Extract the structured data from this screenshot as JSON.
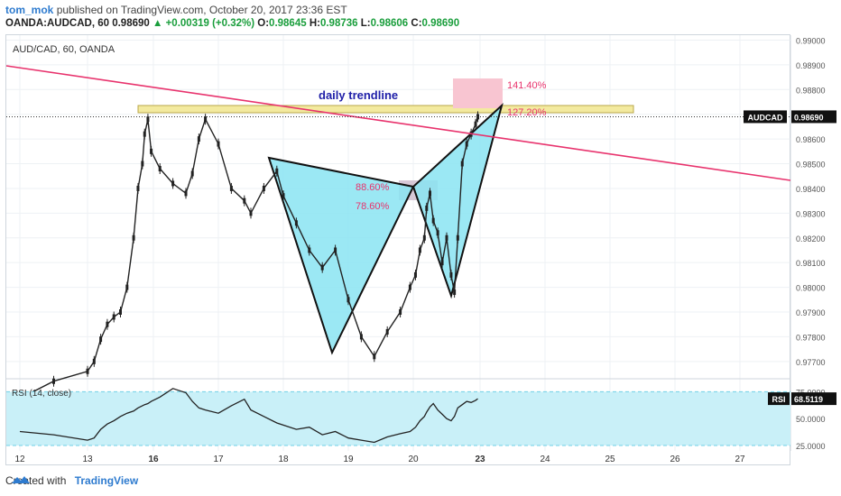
{
  "header": {
    "author": "tom_mok",
    "published": "published on TradingView.com, October 20, 2017 23:36 EST",
    "symbol": "OANDA:AUDCAD, 60",
    "last": "0.98690",
    "change": "+0.00319 (+0.32%)",
    "ohlc_o_label": "O:",
    "ohlc_o": "0.98645",
    "ohlc_h_label": "H:",
    "ohlc_h": "0.98736",
    "ohlc_l_label": "L:",
    "ohlc_l": "0.98606",
    "ohlc_c_label": "C:",
    "ohlc_c": "0.98690"
  },
  "footer": {
    "created_with": "Created with",
    "brand": "TradingView"
  },
  "colors": {
    "trendline": "#e8336d",
    "pattern_fill": "#8ae4f2",
    "pattern_stroke": "#111111",
    "support_zone": "#f3ea9f",
    "fib_box_top": "#f8c5d1",
    "fib_box_mid": "#d7c7d6",
    "rsi_fill": "#c9f0f8",
    "rsi_band": "#6fcfe6",
    "candle": "#222222",
    "annotation_blue": "#1f1fa8",
    "price_tag": "#111111"
  },
  "chart_data": {
    "type": "line",
    "title": "AUD/CAD, 60, OANDA",
    "series": [
      {
        "name": "AUDCAD",
        "x": [
          "12",
          "12.5",
          "13",
          "13.3",
          "13.6",
          "13.9",
          "14.2",
          "14.5",
          "14.8",
          "15.1",
          "15.3",
          "15.5",
          "15.6",
          "15.75",
          "15.9",
          "16.1",
          "16.3",
          "16.5",
          "16.6",
          "16.7",
          "16.8",
          "17",
          "17.2",
          "17.4",
          "17.5",
          "17.7",
          "17.9",
          "18",
          "18.2",
          "18.4",
          "18.6",
          "18.8",
          "19",
          "19.2",
          "19.4",
          "19.6",
          "19.8",
          "19.95",
          "20.1",
          "20.3",
          "20.5",
          "20.6",
          "20.75",
          "20.9",
          "21.1",
          "21.3",
          "21.5",
          "21.7",
          "21.85",
          "22",
          "22.2",
          "22.4",
          "22.6",
          "22.8",
          "22.9"
        ],
        "values": [
          0.9755,
          0.9762,
          0.9766,
          0.977,
          0.9779,
          0.9785,
          0.9788,
          0.979,
          0.98,
          0.982,
          0.984,
          0.985,
          0.9862,
          0.9868,
          0.9855,
          0.9848,
          0.9842,
          0.9838,
          0.9846,
          0.986,
          0.9868,
          0.9858,
          0.984,
          0.9835,
          0.983,
          0.984,
          0.9847,
          0.9837,
          0.9826,
          0.9815,
          0.9808,
          0.9815,
          0.9795,
          0.978,
          0.9772,
          0.9782,
          0.979,
          0.98,
          0.9805,
          0.9815,
          0.982,
          0.9832,
          0.9838,
          0.9827,
          0.9822,
          0.981,
          0.982,
          0.9805,
          0.9798,
          0.982,
          0.985,
          0.9858,
          0.9862,
          0.9866,
          0.9869
        ]
      }
    ],
    "yaxis_ticks": [
      "0.99000",
      "0.98900",
      "0.98800",
      "0.98700",
      "0.98600",
      "0.98500",
      "0.98400",
      "0.98300",
      "0.98200",
      "0.98100",
      "0.98000",
      "0.97900",
      "0.97800",
      "0.97700"
    ],
    "xaxis_ticks": [
      "12",
      "13",
      "16",
      "17",
      "18",
      "19",
      "20",
      "23",
      "24",
      "25",
      "26",
      "27"
    ],
    "ylim": [
      0.9763,
      0.9902
    ],
    "last_price_label": "AUDCAD",
    "last_price": "0.98690",
    "annotations": {
      "trendline_label": "daily trendline",
      "fib_1414": "141.40%",
      "fib_1272": "127.20%",
      "fib_886": "88.60%",
      "fib_786": "78.60%"
    },
    "rsi": {
      "label": "RSI (14, close)",
      "tag": "RSI",
      "value": "68.5119",
      "ticks": [
        "75.0000",
        "50.0000",
        "25.0000"
      ],
      "ylim": [
        20,
        82
      ],
      "values": [
        38,
        35,
        30,
        32,
        40,
        45,
        48,
        52,
        55,
        57,
        60,
        62,
        63,
        64,
        66,
        70,
        78,
        74,
        66,
        60,
        58,
        55,
        62,
        68,
        58,
        52,
        46,
        44,
        40,
        42,
        35,
        38,
        32,
        30,
        28,
        33,
        36,
        38,
        42,
        48,
        52,
        56,
        61,
        64,
        58,
        54,
        50,
        48,
        52,
        60,
        63,
        66,
        65,
        67,
        68.5
      ]
    }
  }
}
